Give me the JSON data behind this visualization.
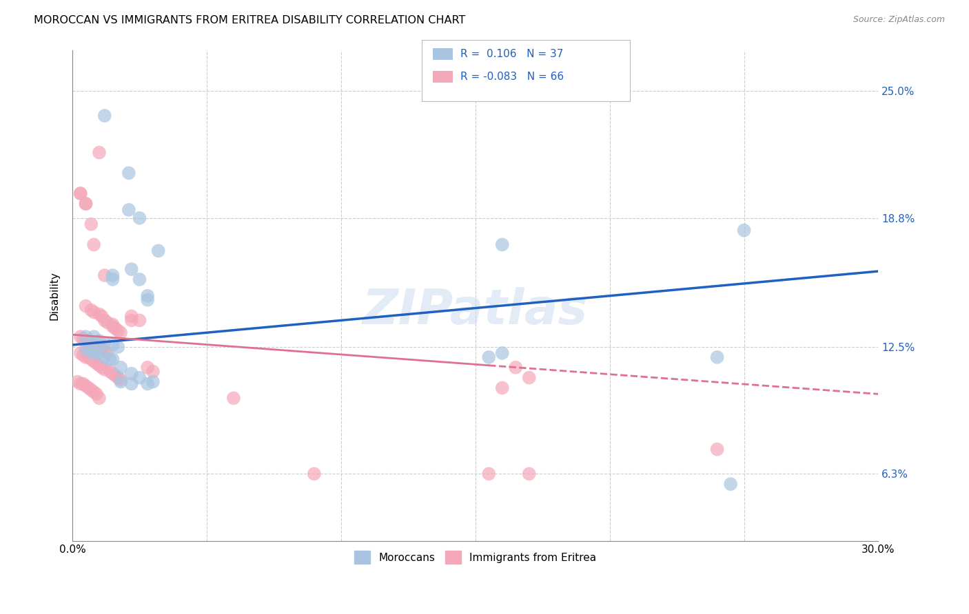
{
  "title": "MOROCCAN VS IMMIGRANTS FROM ERITREA DISABILITY CORRELATION CHART",
  "source": "Source: ZipAtlas.com",
  "ylabel": "Disability",
  "y_ticks": [
    6.3,
    12.5,
    18.8,
    25.0
  ],
  "y_tick_labels": [
    "6.3%",
    "12.5%",
    "18.8%",
    "25.0%"
  ],
  "xmin": 0.0,
  "xmax": 0.3,
  "ymin": 0.03,
  "ymax": 0.27,
  "moroccan_color": "#a8c4e0",
  "eritrea_color": "#f4a7b9",
  "moroccan_line_color": "#2060c0",
  "eritrea_line_color": "#e07090",
  "watermark": "ZIPatlas",
  "moroccan_line": [
    [
      0.0,
      0.126
    ],
    [
      0.3,
      0.162
    ]
  ],
  "eritrea_line_solid": [
    [
      0.0,
      0.131
    ],
    [
      0.155,
      0.116
    ]
  ],
  "eritrea_line_dash": [
    [
      0.155,
      0.116
    ],
    [
      0.3,
      0.102
    ]
  ],
  "moroccan_points": [
    [
      0.012,
      0.238
    ],
    [
      0.021,
      0.21
    ],
    [
      0.021,
      0.192
    ],
    [
      0.025,
      0.188
    ],
    [
      0.032,
      0.172
    ],
    [
      0.015,
      0.16
    ],
    [
      0.025,
      0.158
    ],
    [
      0.028,
      0.15
    ],
    [
      0.022,
      0.163
    ],
    [
      0.015,
      0.158
    ],
    [
      0.028,
      0.148
    ],
    [
      0.005,
      0.13
    ],
    [
      0.008,
      0.13
    ],
    [
      0.01,
      0.128
    ],
    [
      0.012,
      0.127
    ],
    [
      0.015,
      0.126
    ],
    [
      0.017,
      0.125
    ],
    [
      0.005,
      0.124
    ],
    [
      0.007,
      0.123
    ],
    [
      0.008,
      0.122
    ],
    [
      0.01,
      0.122
    ],
    [
      0.012,
      0.12
    ],
    [
      0.014,
      0.119
    ],
    [
      0.015,
      0.119
    ],
    [
      0.018,
      0.115
    ],
    [
      0.022,
      0.112
    ],
    [
      0.025,
      0.11
    ],
    [
      0.03,
      0.108
    ],
    [
      0.018,
      0.108
    ],
    [
      0.022,
      0.107
    ],
    [
      0.028,
      0.107
    ],
    [
      0.16,
      0.122
    ],
    [
      0.16,
      0.175
    ],
    [
      0.24,
      0.12
    ],
    [
      0.245,
      0.058
    ],
    [
      0.25,
      0.182
    ],
    [
      0.155,
      0.12
    ]
  ],
  "eritrea_points": [
    [
      0.003,
      0.2
    ],
    [
      0.005,
      0.195
    ],
    [
      0.007,
      0.185
    ],
    [
      0.008,
      0.175
    ],
    [
      0.01,
      0.22
    ],
    [
      0.012,
      0.16
    ],
    [
      0.005,
      0.145
    ],
    [
      0.007,
      0.143
    ],
    [
      0.008,
      0.142
    ],
    [
      0.01,
      0.141
    ],
    [
      0.011,
      0.14
    ],
    [
      0.012,
      0.138
    ],
    [
      0.013,
      0.137
    ],
    [
      0.015,
      0.136
    ],
    [
      0.015,
      0.135
    ],
    [
      0.016,
      0.134
    ],
    [
      0.017,
      0.133
    ],
    [
      0.018,
      0.132
    ],
    [
      0.003,
      0.13
    ],
    [
      0.004,
      0.129
    ],
    [
      0.005,
      0.128
    ],
    [
      0.006,
      0.127
    ],
    [
      0.007,
      0.127
    ],
    [
      0.008,
      0.126
    ],
    [
      0.009,
      0.125
    ],
    [
      0.01,
      0.125
    ],
    [
      0.011,
      0.124
    ],
    [
      0.012,
      0.123
    ],
    [
      0.013,
      0.122
    ],
    [
      0.003,
      0.122
    ],
    [
      0.004,
      0.121
    ],
    [
      0.005,
      0.12
    ],
    [
      0.006,
      0.12
    ],
    [
      0.007,
      0.119
    ],
    [
      0.008,
      0.118
    ],
    [
      0.009,
      0.117
    ],
    [
      0.01,
      0.116
    ],
    [
      0.011,
      0.115
    ],
    [
      0.012,
      0.114
    ],
    [
      0.014,
      0.113
    ],
    [
      0.015,
      0.112
    ],
    [
      0.016,
      0.111
    ],
    [
      0.017,
      0.11
    ],
    [
      0.018,
      0.109
    ],
    [
      0.002,
      0.108
    ],
    [
      0.003,
      0.107
    ],
    [
      0.004,
      0.107
    ],
    [
      0.005,
      0.106
    ],
    [
      0.006,
      0.105
    ],
    [
      0.007,
      0.104
    ],
    [
      0.008,
      0.103
    ],
    [
      0.009,
      0.102
    ],
    [
      0.01,
      0.1
    ],
    [
      0.022,
      0.14
    ],
    [
      0.025,
      0.138
    ],
    [
      0.028,
      0.115
    ],
    [
      0.03,
      0.113
    ],
    [
      0.003,
      0.2
    ],
    [
      0.005,
      0.195
    ],
    [
      0.022,
      0.138
    ],
    [
      0.165,
      0.115
    ],
    [
      0.17,
      0.11
    ],
    [
      0.16,
      0.105
    ],
    [
      0.155,
      0.063
    ],
    [
      0.24,
      0.075
    ],
    [
      0.06,
      0.1
    ],
    [
      0.09,
      0.063
    ],
    [
      0.17,
      0.063
    ]
  ]
}
